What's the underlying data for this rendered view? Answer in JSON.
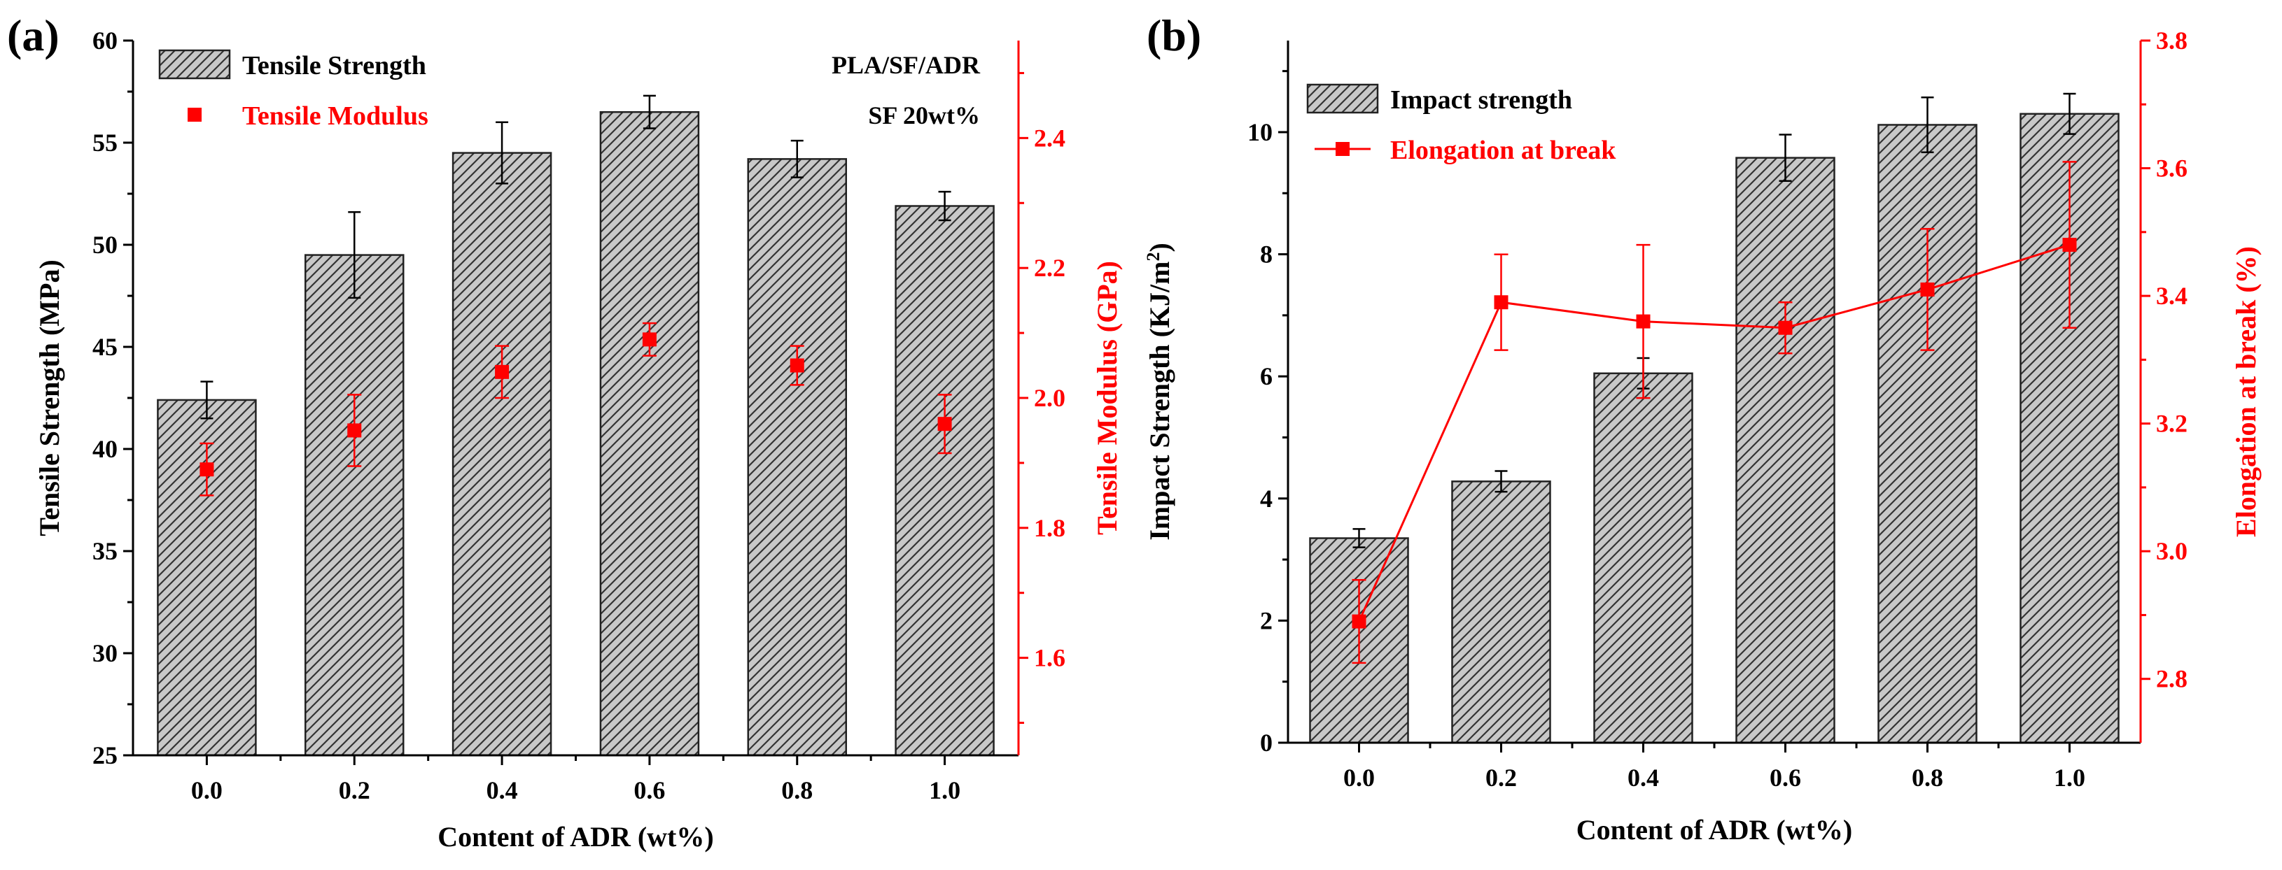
{
  "charts": [
    {
      "panel_label": "(a)",
      "annotation_lines": [
        "PLA/SF/ADR",
        "SF 20wt%"
      ],
      "colors": {
        "bar_fill": "#c8c8c8",
        "hatch": "#333333",
        "axis": "#000000",
        "secondary": "#ff0000"
      }
    },
    {
      "panel_label": "(b)",
      "annotation_lines": [],
      "colors": {
        "bar_fill": "#c8c8c8",
        "hatch": "#333333",
        "axis": "#000000",
        "secondary": "#ff0000"
      }
    }
  ],
  "chart_data": [
    {
      "type": "bar",
      "title": "",
      "xlabel": "Content of ADR (wt%)",
      "ylabel": "Tensile Strength (MPa)",
      "ylabel2": "Tensile Modulus (GPa)",
      "categories": [
        "0.0",
        "0.2",
        "0.4",
        "0.6",
        "0.8",
        "1.0"
      ],
      "ylim": [
        25,
        60
      ],
      "yticks": [
        "25",
        "30",
        "35",
        "40",
        "45",
        "50",
        "55",
        "60"
      ],
      "y2lim": [
        1.45,
        2.55
      ],
      "y2ticks": [
        "1.6",
        "1.8",
        "2.0",
        "2.2",
        "2.4"
      ],
      "legend": "top-left",
      "series": [
        {
          "name": "Tensile Strength",
          "kind": "bar",
          "axis": "left",
          "values": [
            42.4,
            49.5,
            54.5,
            56.5,
            54.2,
            51.9
          ],
          "errors": [
            0.9,
            2.1,
            1.5,
            0.8,
            0.9,
            0.7
          ]
        },
        {
          "name": "Tensile Modulus",
          "kind": "scatter",
          "axis": "right",
          "connected": false,
          "values": [
            1.89,
            1.95,
            2.04,
            2.09,
            2.05,
            1.96
          ],
          "errors": [
            0.04,
            0.055,
            0.04,
            0.025,
            0.03,
            0.045
          ]
        }
      ]
    },
    {
      "type": "bar",
      "title": "",
      "xlabel": "Content of ADR (wt%)",
      "ylabel": "Impact Strength (KJ/m",
      "ylabel_sup": "2",
      "ylabel_end": ")",
      "ylabel2": "Elongation at break (%)",
      "categories": [
        "0.0",
        "0.2",
        "0.4",
        "0.6",
        "0.8",
        "1.0"
      ],
      "ylim": [
        0,
        11.5
      ],
      "yticks": [
        "0",
        "2",
        "4",
        "6",
        "8",
        "10"
      ],
      "y2lim": [
        2.7,
        3.8
      ],
      "y2ticks": [
        "2.8",
        "3.0",
        "3.2",
        "3.4",
        "3.6",
        "3.8"
      ],
      "legend": "top-left",
      "series": [
        {
          "name": "Impact strength",
          "kind": "bar",
          "axis": "left",
          "values": [
            3.35,
            4.28,
            6.05,
            9.58,
            10.12,
            10.3
          ],
          "errors": [
            0.15,
            0.17,
            0.25,
            0.38,
            0.45,
            0.33
          ]
        },
        {
          "name": "Elongation at break",
          "kind": "line",
          "axis": "right",
          "connected": true,
          "values": [
            2.89,
            3.39,
            3.36,
            3.35,
            3.41,
            3.48
          ],
          "errors": [
            0.065,
            0.075,
            0.12,
            0.04,
            0.095,
            0.13
          ]
        }
      ]
    }
  ]
}
